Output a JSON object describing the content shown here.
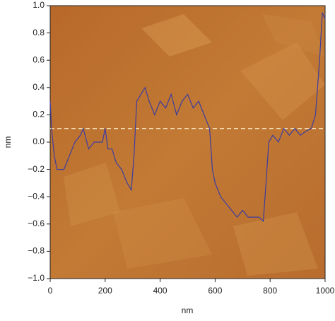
{
  "chart_data": {
    "type": "line",
    "xlabel": "nm",
    "ylabel": "nm",
    "x": [
      0,
      5,
      15,
      25,
      50,
      70,
      90,
      110,
      120,
      140,
      160,
      190,
      200,
      210,
      225,
      240,
      260,
      280,
      295,
      305,
      315,
      330,
      345,
      360,
      380,
      400,
      420,
      440,
      460,
      480,
      500,
      520,
      540,
      560,
      580,
      590,
      600,
      620,
      640,
      660,
      680,
      700,
      720,
      740,
      760,
      775,
      785,
      795,
      810,
      830,
      850,
      870,
      890,
      910,
      930,
      950,
      965,
      980,
      990,
      1000
    ],
    "values": [
      0.3,
      0.1,
      -0.1,
      -0.2,
      -0.2,
      -0.1,
      0.0,
      0.05,
      0.1,
      -0.05,
      0.0,
      0.0,
      0.1,
      -0.05,
      -0.05,
      -0.15,
      -0.2,
      -0.3,
      -0.35,
      -0.1,
      0.3,
      0.35,
      0.4,
      0.3,
      0.2,
      0.3,
      0.25,
      0.35,
      0.2,
      0.3,
      0.35,
      0.25,
      0.3,
      0.2,
      0.1,
      -0.2,
      -0.3,
      -0.4,
      -0.45,
      -0.5,
      -0.55,
      -0.5,
      -0.55,
      -0.55,
      -0.55,
      -0.58,
      -0.3,
      0.0,
      0.05,
      0.0,
      0.1,
      0.05,
      0.1,
      0.05,
      0.08,
      0.1,
      0.2,
      0.6,
      0.95,
      0.9
    ],
    "color": "#3d3d9e",
    "hline": {
      "value": 0.1,
      "color": "#f3e2b8"
    },
    "xlim": [
      0,
      1000
    ],
    "xticks": [
      0,
      200,
      400,
      600,
      800,
      1000
    ],
    "ylim": [
      -1.0,
      1.0
    ],
    "yticks": [
      {
        "value": -1.0,
        "label": "−1.0"
      },
      {
        "value": -0.8,
        "label": "−0.8"
      },
      {
        "value": -0.6,
        "label": "−0.6"
      },
      {
        "value": -0.4,
        "label": "−0.4"
      },
      {
        "value": -0.2,
        "label": "−0.2"
      },
      {
        "value": 0.0,
        "label": "0.0"
      },
      0.2,
      0.4,
      0.6,
      0.8,
      {
        "value": 1.0,
        "label": "1.0"
      }
    ]
  }
}
